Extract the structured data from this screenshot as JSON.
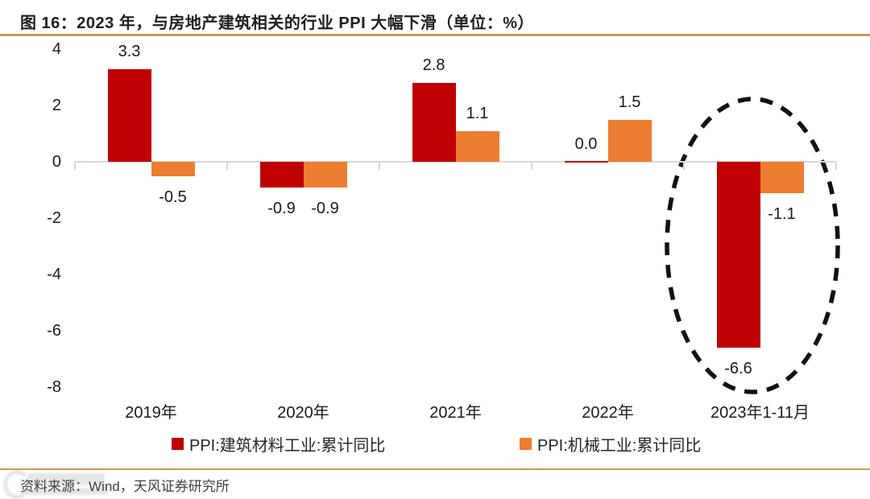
{
  "figure": {
    "title": "图 16：2023 年，与房地产建筑相关的行业 PPI 大幅下滑（单位：%）",
    "source": "资料来源：Wind，天风证券研究所"
  },
  "legend": [
    {
      "label": "PPI:建筑材料工业:累计同比",
      "color": "#C00000"
    },
    {
      "label": "PPI:机械工业:累计同比",
      "color": "#ED7D31"
    }
  ],
  "colors": {
    "series_red": "#C00000",
    "series_orange": "#ED7D31",
    "accent_rule": "#C79A5E",
    "axis_gray": "#D9D9D9",
    "highlight_ellipse": "#111111"
  },
  "chart_data": {
    "type": "bar",
    "title": "2023 年，与房地产建筑相关的行业 PPI 大幅下滑",
    "unit": "%",
    "categories": [
      "2019年",
      "2020年",
      "2021年",
      "2022年",
      "2023年1-11月"
    ],
    "series": [
      {
        "name": "PPI:建筑材料工业:累计同比",
        "color": "#C00000",
        "values": [
          3.3,
          -0.9,
          2.8,
          0.0,
          -6.6
        ]
      },
      {
        "name": "PPI:机械工业:累计同比",
        "color": "#ED7D31",
        "values": [
          -0.5,
          -0.9,
          1.1,
          1.5,
          -1.1
        ]
      }
    ],
    "ylim": [
      -8,
      4
    ],
    "yticks": [
      4,
      2,
      0,
      -2,
      -4,
      -6,
      -8
    ],
    "xlabel": "",
    "ylabel": "",
    "grid": false,
    "legend_position": "bottom",
    "annotations": [
      {
        "type": "dashed-ellipse",
        "target_category": "2023年1-11月",
        "note": "highlight of 2023 decline"
      }
    ]
  }
}
